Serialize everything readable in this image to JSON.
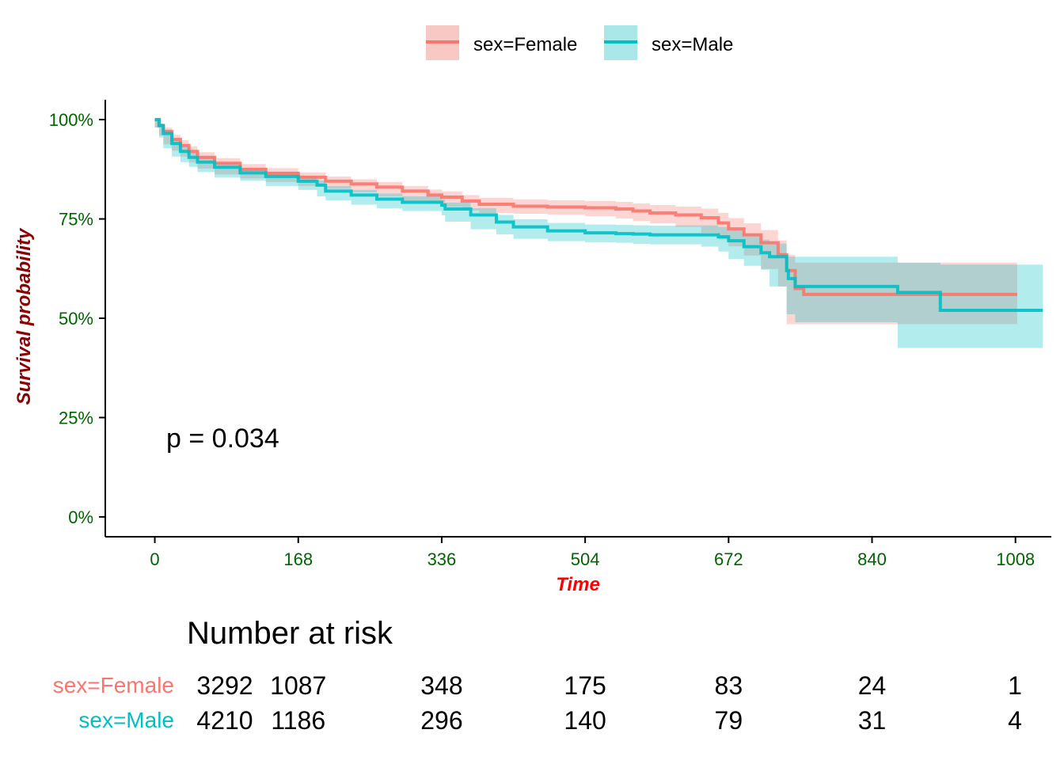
{
  "chart_data": {
    "type": "line",
    "subtype": "kaplan-meier",
    "xlabel": "Time",
    "ylabel": "Survival probability",
    "x_ticks": [
      0,
      168,
      336,
      504,
      672,
      840,
      1008
    ],
    "x_tick_labels": [
      "0",
      "168",
      "336",
      "504",
      "672",
      "840",
      "1008"
    ],
    "xlim": [
      -58,
      1050
    ],
    "y_ticks": [
      0,
      0.25,
      0.5,
      0.75,
      1.0
    ],
    "y_tick_labels": [
      "0%",
      "25%",
      "50%",
      "75%",
      "100%"
    ],
    "ylim": [
      -0.05,
      1.05
    ],
    "grid": false,
    "legend_position": "top",
    "annotation": "p = 0.034",
    "colors": {
      "Female": "#F8766D",
      "Male": "#00BFC4",
      "axis_text": "#006400",
      "ylabel": "#8B0000",
      "xlabel": "#FF0000"
    },
    "series": [
      {
        "name": "sex=Female",
        "x": [
          0,
          5,
          10,
          20,
          30,
          40,
          50,
          70,
          100,
          130,
          168,
          200,
          230,
          260,
          290,
          320,
          336,
          360,
          380,
          420,
          460,
          504,
          540,
          560,
          580,
          610,
          640,
          660,
          672,
          690,
          710,
          730,
          740,
          750,
          760,
          800,
          840,
          1010
        ],
        "y": [
          1.0,
          0.985,
          0.97,
          0.95,
          0.935,
          0.92,
          0.905,
          0.89,
          0.875,
          0.865,
          0.855,
          0.845,
          0.838,
          0.83,
          0.82,
          0.81,
          0.805,
          0.795,
          0.787,
          0.782,
          0.78,
          0.778,
          0.775,
          0.77,
          0.765,
          0.76,
          0.753,
          0.74,
          0.725,
          0.71,
          0.69,
          0.66,
          0.62,
          0.575,
          0.56,
          0.56,
          0.56,
          0.56
        ],
        "ci_upper": [
          1.0,
          0.99,
          0.98,
          0.962,
          0.948,
          0.933,
          0.918,
          0.903,
          0.888,
          0.878,
          0.867,
          0.857,
          0.85,
          0.843,
          0.833,
          0.824,
          0.819,
          0.81,
          0.803,
          0.799,
          0.797,
          0.795,
          0.793,
          0.789,
          0.785,
          0.781,
          0.776,
          0.765,
          0.752,
          0.739,
          0.722,
          0.696,
          0.66,
          0.64,
          0.64,
          0.64,
          0.64,
          0.64
        ],
        "ci_lower": [
          1.0,
          0.98,
          0.96,
          0.938,
          0.922,
          0.907,
          0.892,
          0.877,
          0.862,
          0.852,
          0.843,
          0.833,
          0.826,
          0.817,
          0.807,
          0.796,
          0.791,
          0.78,
          0.771,
          0.765,
          0.763,
          0.761,
          0.757,
          0.751,
          0.745,
          0.739,
          0.73,
          0.715,
          0.698,
          0.681,
          0.658,
          0.624,
          0.58,
          0.485,
          0.485,
          0.485,
          0.485,
          0.485
        ]
      },
      {
        "name": "sex=Male",
        "x": [
          0,
          5,
          10,
          20,
          30,
          40,
          50,
          70,
          100,
          130,
          168,
          190,
          200,
          230,
          260,
          290,
          336,
          340,
          370,
          400,
          420,
          460,
          504,
          540,
          560,
          580,
          610,
          640,
          660,
          672,
          690,
          710,
          720,
          740,
          742,
          750,
          870,
          920,
          1040
        ],
        "y": [
          1.0,
          0.985,
          0.965,
          0.94,
          0.92,
          0.905,
          0.893,
          0.88,
          0.866,
          0.857,
          0.845,
          0.835,
          0.82,
          0.81,
          0.8,
          0.792,
          0.785,
          0.775,
          0.76,
          0.742,
          0.73,
          0.72,
          0.715,
          0.713,
          0.712,
          0.71,
          0.71,
          0.71,
          0.705,
          0.695,
          0.68,
          0.665,
          0.655,
          0.62,
          0.6,
          0.58,
          0.565,
          0.52,
          0.52
        ],
        "ci_upper": [
          1.0,
          0.99,
          0.975,
          0.952,
          0.933,
          0.917,
          0.905,
          0.892,
          0.878,
          0.868,
          0.857,
          0.847,
          0.833,
          0.823,
          0.814,
          0.807,
          0.8,
          0.791,
          0.777,
          0.76,
          0.749,
          0.74,
          0.736,
          0.735,
          0.734,
          0.733,
          0.734,
          0.734,
          0.73,
          0.722,
          0.711,
          0.698,
          0.688,
          0.66,
          0.655,
          0.655,
          0.64,
          0.635,
          0.635
        ],
        "ci_lower": [
          1.0,
          0.98,
          0.955,
          0.928,
          0.907,
          0.893,
          0.881,
          0.868,
          0.854,
          0.846,
          0.833,
          0.823,
          0.807,
          0.797,
          0.786,
          0.777,
          0.77,
          0.759,
          0.743,
          0.724,
          0.711,
          0.7,
          0.694,
          0.691,
          0.69,
          0.687,
          0.686,
          0.686,
          0.68,
          0.668,
          0.649,
          0.632,
          0.622,
          0.58,
          0.51,
          0.51,
          0.49,
          0.425,
          0.425
        ]
      }
    ]
  },
  "legend": {
    "items": [
      {
        "label": "sex=Female",
        "color": "#F8766D",
        "fill": "#F8C9C4"
      },
      {
        "label": "sex=Male",
        "color": "#00BFC4",
        "fill": "#A9E7E8"
      }
    ]
  },
  "risk_table": {
    "title": "Number at risk",
    "time_points": [
      0,
      168,
      336,
      504,
      672,
      840,
      1008
    ],
    "strata": [
      {
        "label": "sex=Female",
        "color": "#F8766D",
        "counts": [
          "3292",
          "1087",
          "348",
          "175",
          "83",
          "24",
          "1"
        ]
      },
      {
        "label": "sex=Male",
        "color": "#00BFC4",
        "counts": [
          "4210",
          "1186",
          "296",
          "140",
          "79",
          "31",
          "4"
        ]
      }
    ]
  }
}
